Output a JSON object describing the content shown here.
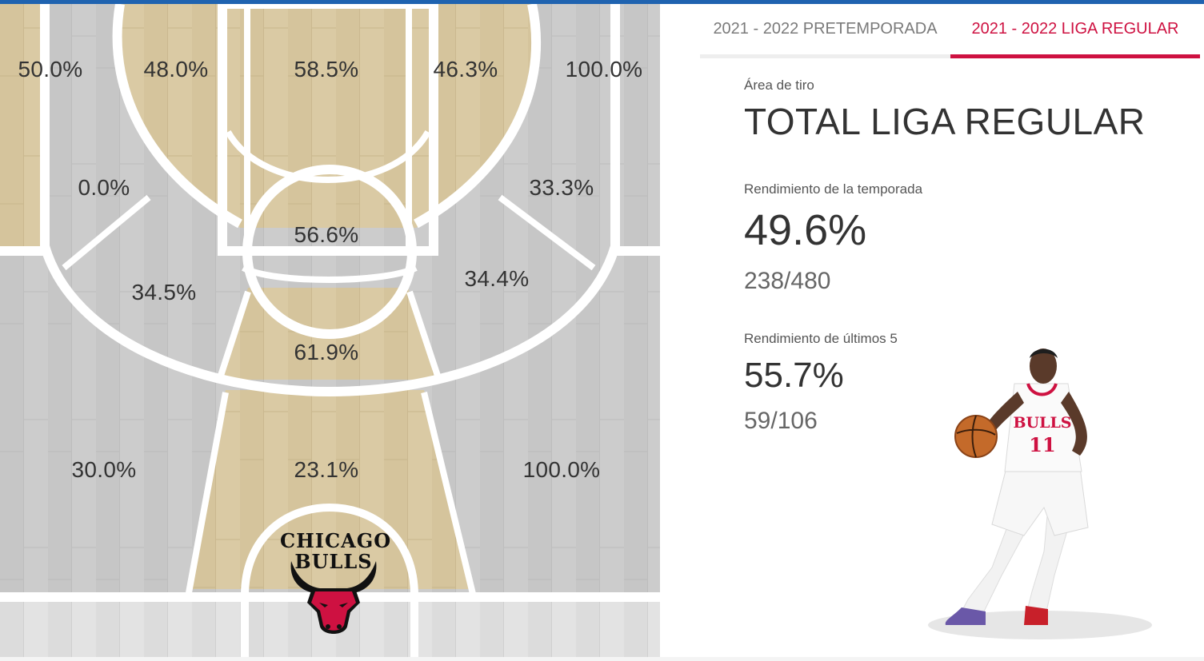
{
  "court": {
    "zones": {
      "left_corner_three": "50.0%",
      "left_wing_three": "48.0%",
      "top_three": "58.5%",
      "right_wing_three": "46.3%",
      "right_corner_three": "100.0%",
      "left_baseline_mid": "0.0%",
      "right_baseline_mid": "33.3%",
      "paint_upper": "56.6%",
      "left_elbow_mid": "34.5%",
      "right_elbow_mid": "34.4%",
      "paint_lower": "61.9%",
      "left_restricted_side": "30.0%",
      "restricted_area": "23.1%",
      "right_restricted_side": "100.0%"
    },
    "logo": {
      "line1": "CHICAGO",
      "line2": "BULLS"
    }
  },
  "tabs": [
    {
      "label": "2021 - 2022 PRETEMPORADA",
      "active": false
    },
    {
      "label": "2021 - 2022 LIGA REGULAR",
      "active": true
    }
  ],
  "stats": {
    "area_label": "Área de tiro",
    "area_title": "TOTAL LIGA REGULAR",
    "season_label": "Rendimiento de la temporada",
    "season_pct": "49.6%",
    "season_made": "238/480",
    "last5_label": "Rendimiento de últimos 5",
    "last5_pct": "55.7%",
    "last5_made": "59/106"
  },
  "player": {
    "jersey_text": "BULLS",
    "jersey_number": "11"
  },
  "colors": {
    "accent": "#ce1141",
    "brand_blue": "#1f63b0",
    "wood_light": "#d9c8a0",
    "wood_gray": "#c9c9c9"
  }
}
